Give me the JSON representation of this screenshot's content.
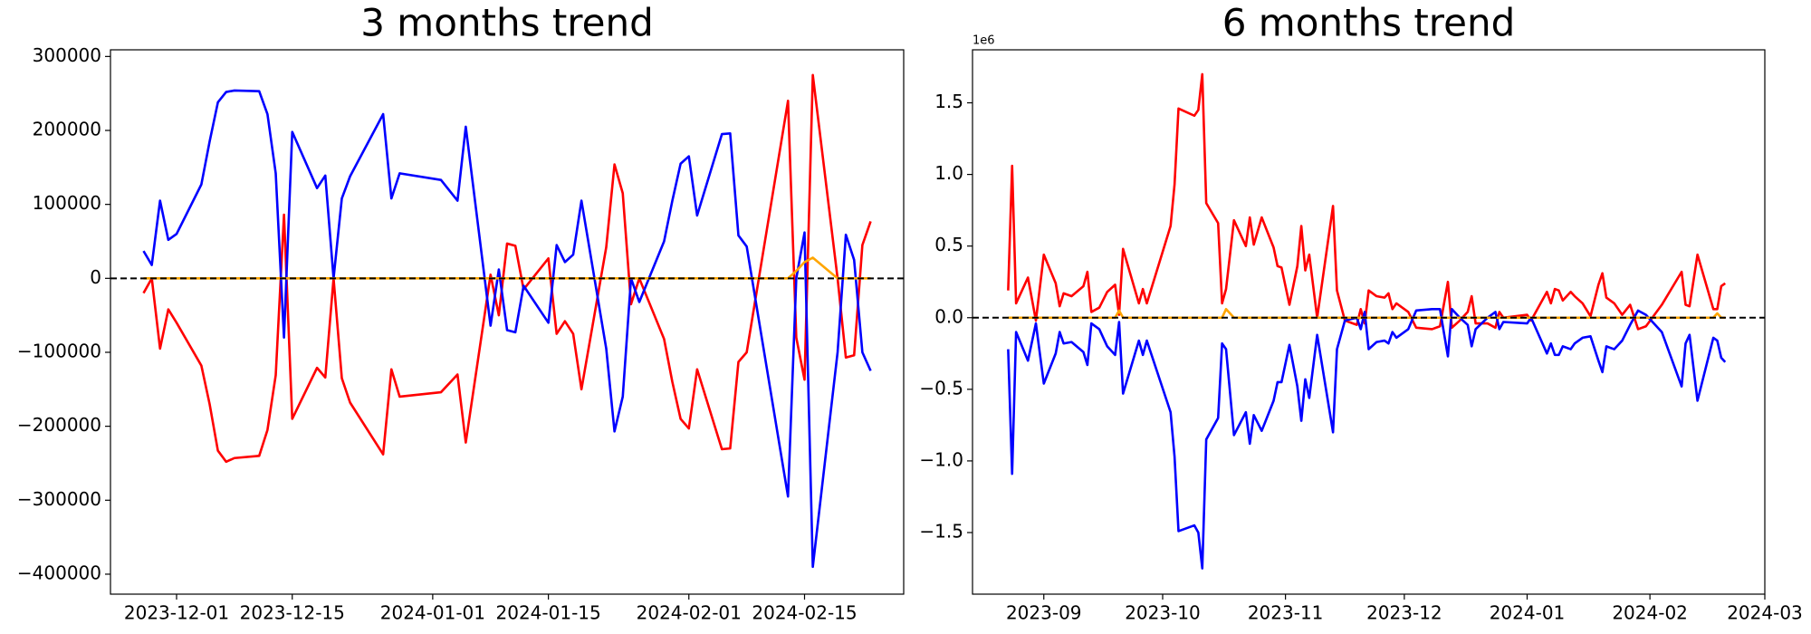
{
  "chart_data": [
    {
      "type": "line",
      "title": "3 months trend",
      "x": [
        "2023-11-27",
        "2023-11-28",
        "2023-11-29",
        "2023-11-30",
        "2023-12-01",
        "2023-12-04",
        "2023-12-05",
        "2023-12-06",
        "2023-12-07",
        "2023-12-08",
        "2023-12-11",
        "2023-12-12",
        "2023-12-13",
        "2023-12-14",
        "2023-12-15",
        "2023-12-18",
        "2023-12-19",
        "2023-12-20",
        "2023-12-21",
        "2023-12-22",
        "2023-12-26",
        "2023-12-27",
        "2023-12-28",
        "2024-01-02",
        "2024-01-04",
        "2024-01-05",
        "2024-01-08",
        "2024-01-09",
        "2024-01-10",
        "2024-01-11",
        "2024-01-12",
        "2024-01-15",
        "2024-01-16",
        "2024-01-17",
        "2024-01-18",
        "2024-01-19",
        "2024-01-22",
        "2024-01-23",
        "2024-01-24",
        "2024-01-25",
        "2024-01-26",
        "2024-01-29",
        "2024-01-30",
        "2024-01-31",
        "2024-02-01",
        "2024-02-02",
        "2024-02-05",
        "2024-02-06",
        "2024-02-07",
        "2024-02-08",
        "2024-02-13",
        "2024-02-14",
        "2024-02-15",
        "2024-02-16",
        "2024-02-19",
        "2024-02-20",
        "2024-02-21",
        "2024-02-22",
        "2024-02-23"
      ],
      "series": [
        {
          "color": "red",
          "values": [
            -20000,
            0,
            -95000,
            -42000,
            -60000,
            -118000,
            -170000,
            -233000,
            -248000,
            -243000,
            -240000,
            -205000,
            -131000,
            86000,
            -190000,
            -121000,
            -134000,
            0,
            -135000,
            -168000,
            -238000,
            -123000,
            -160000,
            -154000,
            -130000,
            -222000,
            5000,
            -50000,
            47000,
            44000,
            -15000,
            27000,
            -75000,
            -58000,
            -75000,
            -150000,
            42000,
            154000,
            115000,
            -35000,
            0,
            -82000,
            -140000,
            -190000,
            -203000,
            -123000,
            -231000,
            -230000,
            -113000,
            -100000,
            240000,
            -80000,
            -137000,
            275000,
            0,
            -107000,
            -104000,
            45000,
            77000
          ]
        },
        {
          "color": "blue",
          "values": [
            37000,
            18000,
            105000,
            52000,
            60000,
            127000,
            185000,
            238000,
            252000,
            254000,
            253000,
            222000,
            142000,
            -80000,
            198000,
            122000,
            139000,
            0,
            108000,
            138000,
            222000,
            108000,
            142000,
            133000,
            105000,
            205000,
            -64000,
            12000,
            -70000,
            -73000,
            -10000,
            -60000,
            45000,
            22000,
            32000,
            105000,
            -95000,
            -207000,
            -160000,
            0,
            -32000,
            50000,
            105000,
            155000,
            165000,
            85000,
            195000,
            196000,
            58000,
            43000,
            -295000,
            0,
            62000,
            -390000,
            -100000,
            59000,
            25000,
            -100000,
            -125000
          ]
        },
        {
          "color": "orange",
          "values": [
            0,
            0,
            0,
            0,
            0,
            0,
            0,
            0,
            0,
            0,
            0,
            0,
            0,
            0,
            0,
            0,
            0,
            0,
            0,
            0,
            0,
            0,
            0,
            0,
            0,
            0,
            0,
            0,
            0,
            0,
            0,
            0,
            0,
            0,
            0,
            0,
            0,
            0,
            0,
            0,
            0,
            0,
            0,
            0,
            0,
            0,
            0,
            0,
            0,
            0,
            0,
            10000,
            22000,
            28000,
            0,
            0,
            0,
            0,
            0
          ]
        }
      ],
      "xlim": [
        "2023-11-23",
        "2024-02-27"
      ],
      "xticks": [
        "2023-12-01",
        "2023-12-15",
        "2024-01-01",
        "2024-01-15",
        "2024-02-01",
        "2024-02-15"
      ],
      "ylim": [
        -427000,
        309000
      ],
      "yticks": [
        {
          "value": -400000,
          "label": "−400000"
        },
        {
          "value": -300000,
          "label": "−300000"
        },
        {
          "value": -200000,
          "label": "−200000"
        },
        {
          "value": -100000,
          "label": "−100000"
        },
        0,
        100000,
        200000,
        300000
      ],
      "hline": 0
    },
    {
      "type": "line",
      "title": "6 months trend",
      "y_offset_label": "1e6",
      "x": [
        "2023-08-23",
        "2023-08-24",
        "2023-08-25",
        "2023-08-28",
        "2023-08-30",
        "2023-09-01",
        "2023-09-04",
        "2023-09-05",
        "2023-09-06",
        "2023-09-08",
        "2023-09-11",
        "2023-09-12",
        "2023-09-13",
        "2023-09-15",
        "2023-09-17",
        "2023-09-19",
        "2023-09-20",
        "2023-09-21",
        "2023-09-25",
        "2023-09-26",
        "2023-09-27",
        "2023-10-03",
        "2023-10-04",
        "2023-10-05",
        "2023-10-09",
        "2023-10-10",
        "2023-10-11",
        "2023-10-12",
        "2023-10-15",
        "2023-10-16",
        "2023-10-17",
        "2023-10-19",
        "2023-10-22",
        "2023-10-23",
        "2023-10-24",
        "2023-10-26",
        "2023-10-29",
        "2023-10-30",
        "2023-10-31",
        "2023-11-02",
        "2023-11-04",
        "2023-11-05",
        "2023-11-06",
        "2023-11-07",
        "2023-11-09",
        "2023-11-13",
        "2023-11-14",
        "2023-11-16",
        "2023-11-19",
        "2023-11-20",
        "2023-11-21",
        "2023-11-22",
        "2023-11-24",
        "2023-11-26",
        "2023-11-27",
        "2023-11-28",
        "2023-11-29",
        "2023-12-02",
        "2023-12-04",
        "2023-12-08",
        "2023-12-10",
        "2023-12-12",
        "2023-12-13",
        "2023-12-15",
        "2023-12-17",
        "2023-12-18",
        "2023-12-19",
        "2023-12-22",
        "2023-12-24",
        "2023-12-25",
        "2023-12-26",
        "2024-01-01",
        "2024-01-02",
        "2024-01-06",
        "2024-01-07",
        "2024-01-08",
        "2024-01-09",
        "2024-01-10",
        "2024-01-12",
        "2024-01-13",
        "2024-01-15",
        "2024-01-17",
        "2024-01-19",
        "2024-01-20",
        "2024-01-21",
        "2024-01-23",
        "2024-01-25",
        "2024-01-27",
        "2024-01-29",
        "2024-01-31",
        "2024-02-04",
        "2024-02-09",
        "2024-02-10",
        "2024-02-11",
        "2024-02-13",
        "2024-02-17",
        "2024-02-18",
        "2024-02-19",
        "2024-02-20"
      ],
      "series": [
        {
          "color": "red",
          "values": [
            0.19,
            1.06,
            0.1,
            0.28,
            -0.02,
            0.44,
            0.24,
            0.08,
            0.17,
            0.15,
            0.22,
            0.32,
            0.04,
            0.07,
            0.18,
            0.23,
            0.02,
            0.48,
            0.1,
            0.2,
            0.1,
            0.64,
            0.93,
            1.46,
            1.41,
            1.45,
            1.7,
            0.8,
            0.66,
            0.1,
            0.2,
            0.68,
            0.5,
            0.7,
            0.51,
            0.7,
            0.49,
            0.36,
            0.35,
            0.09,
            0.36,
            0.64,
            0.33,
            0.44,
            0.0,
            0.78,
            0.19,
            -0.02,
            -0.05,
            0.06,
            -0.04,
            0.19,
            0.15,
            0.14,
            0.17,
            0.06,
            0.1,
            0.04,
            -0.07,
            -0.08,
            -0.06,
            0.25,
            -0.07,
            -0.02,
            0.04,
            0.15,
            -0.04,
            -0.04,
            -0.07,
            0.04,
            0.0,
            0.02,
            -0.02,
            0.18,
            0.1,
            0.2,
            0.19,
            0.12,
            0.18,
            0.15,
            0.1,
            0.01,
            0.23,
            0.31,
            0.14,
            0.1,
            0.02,
            0.09,
            -0.08,
            -0.06,
            0.09,
            0.32,
            0.09,
            0.08,
            0.44,
            0.06,
            0.06,
            0.22,
            0.24
          ]
        },
        {
          "color": "blue",
          "values": [
            -0.22,
            -1.09,
            -0.1,
            -0.3,
            -0.04,
            -0.46,
            -0.25,
            -0.1,
            -0.18,
            -0.17,
            -0.24,
            -0.33,
            -0.04,
            -0.08,
            -0.2,
            -0.26,
            -0.03,
            -0.53,
            -0.16,
            -0.26,
            -0.16,
            -0.66,
            -0.97,
            -1.49,
            -1.45,
            -1.5,
            -1.75,
            -0.85,
            -0.7,
            -0.18,
            -0.22,
            -0.82,
            -0.66,
            -0.88,
            -0.68,
            -0.79,
            -0.58,
            -0.45,
            -0.45,
            -0.19,
            -0.48,
            -0.72,
            -0.43,
            -0.56,
            -0.12,
            -0.8,
            -0.22,
            -0.02,
            0.0,
            -0.08,
            0.04,
            -0.22,
            -0.17,
            -0.16,
            -0.18,
            -0.1,
            -0.14,
            -0.08,
            0.05,
            0.06,
            0.06,
            -0.27,
            0.06,
            0.0,
            -0.05,
            -0.2,
            -0.08,
            0.0,
            0.04,
            -0.08,
            -0.03,
            -0.04,
            0.0,
            -0.25,
            -0.18,
            -0.26,
            -0.26,
            -0.2,
            -0.22,
            -0.18,
            -0.14,
            -0.13,
            -0.3,
            -0.38,
            -0.2,
            -0.22,
            -0.16,
            -0.05,
            0.05,
            0.02,
            -0.1,
            -0.48,
            -0.18,
            -0.12,
            -0.58,
            -0.14,
            -0.16,
            -0.28,
            -0.31
          ]
        },
        {
          "color": "orange",
          "values": [
            0,
            0,
            0,
            0,
            0,
            0,
            0,
            0,
            0,
            0,
            0,
            0,
            0,
            0,
            0,
            0,
            0.05,
            0,
            0,
            0,
            0,
            0,
            0,
            0,
            0,
            0,
            0,
            0,
            0,
            0,
            0.06,
            0,
            0,
            0,
            0,
            0,
            0,
            0,
            0,
            0,
            0,
            0,
            0,
            0,
            0,
            0,
            0,
            0,
            0,
            0,
            0,
            0,
            0,
            0,
            0,
            0,
            0,
            0,
            0,
            0,
            0,
            0,
            0,
            0,
            0,
            0,
            0,
            0,
            0,
            0,
            0,
            0,
            0,
            0,
            0,
            0,
            0,
            0,
            0,
            0,
            0,
            0,
            0,
            0,
            0,
            0,
            0,
            0,
            0,
            0,
            0,
            0,
            0,
            0,
            0,
            0,
            0.03,
            0,
            0
          ]
        }
      ],
      "xlim": [
        "2023-08-14",
        "2024-03-01"
      ],
      "xticks": [
        {
          "value": "2023-09-01",
          "label": "2023-09"
        },
        {
          "value": "2023-10-01",
          "label": "2023-10"
        },
        {
          "value": "2023-11-01",
          "label": "2023-11"
        },
        {
          "value": "2023-12-01",
          "label": "2023-12"
        },
        {
          "value": "2024-01-01",
          "label": "2024-01"
        },
        {
          "value": "2024-02-01",
          "label": "2024-02"
        },
        {
          "value": "2024-03-01",
          "label": "2024-03"
        }
      ],
      "ylim": [
        -1.93,
        1.87
      ],
      "yticks": [
        {
          "value": -1.5,
          "label": "−1.5"
        },
        {
          "value": -1,
          "label": "−1.0"
        },
        {
          "value": -0.5,
          "label": "−0.5"
        },
        {
          "value": 0,
          "label": "0.0"
        },
        0.5,
        {
          "value": 1,
          "label": "1.0"
        },
        1.5
      ],
      "hline": 0
    }
  ]
}
